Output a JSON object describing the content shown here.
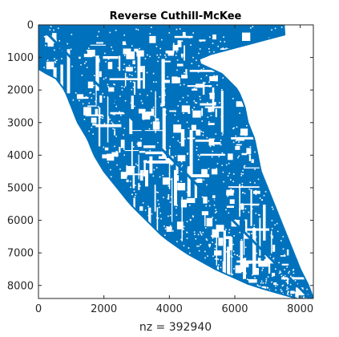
{
  "chart_data": {
    "type": "scatter",
    "plot_kind": "sparsity-pattern (spy plot)",
    "title": "Reverse Cuthill-McKee",
    "xlabel": "nz = 392940",
    "ylabel": "",
    "matrix_size": [
      8400,
      8400
    ],
    "nonzeros": 392940,
    "xlim": [
      0,
      8400
    ],
    "ylim": [
      0,
      8400
    ],
    "y_axis_direction": "down",
    "x_ticks": [
      0,
      2000,
      4000,
      6000,
      8000
    ],
    "x_tick_labels": [
      "0",
      "2000",
      "4000",
      "6000",
      "8000"
    ],
    "y_ticks": [
      0,
      1000,
      2000,
      3000,
      4000,
      5000,
      6000,
      7000,
      8000
    ],
    "y_tick_labels": [
      "0",
      "1000",
      "2000",
      "3000",
      "4000",
      "5000",
      "6000",
      "7000",
      "8000"
    ],
    "grid": false,
    "box": true,
    "marker_color": "#0072BD",
    "band_upper_profile": {
      "rows": [
        0,
        300,
        1000,
        1200,
        1500,
        2000,
        2500,
        3000,
        3500,
        4000,
        4500,
        5000,
        5500,
        6000,
        6500,
        7000,
        7500,
        8000,
        8400
      ],
      "max_col": [
        7500,
        7520,
        4900,
        4950,
        5600,
        6100,
        6300,
        6400,
        6600,
        6700,
        6800,
        7000,
        7200,
        7400,
        7600,
        7800,
        8000,
        8250,
        8400
      ]
    },
    "band_lower_profile": {
      "rows": [
        0,
        800,
        1000,
        1100,
        1400,
        1600,
        2000,
        2500,
        3000,
        3500,
        4000,
        4500,
        5000,
        5500,
        6000,
        6500,
        7000,
        7500,
        8000,
        8400
      ],
      "min_col": [
        0,
        0,
        50,
        0,
        0,
        500,
        800,
        1000,
        1200,
        1500,
        1700,
        2000,
        2400,
        2800,
        3300,
        3800,
        4500,
        5400,
        6500,
        7900
      ]
    }
  }
}
